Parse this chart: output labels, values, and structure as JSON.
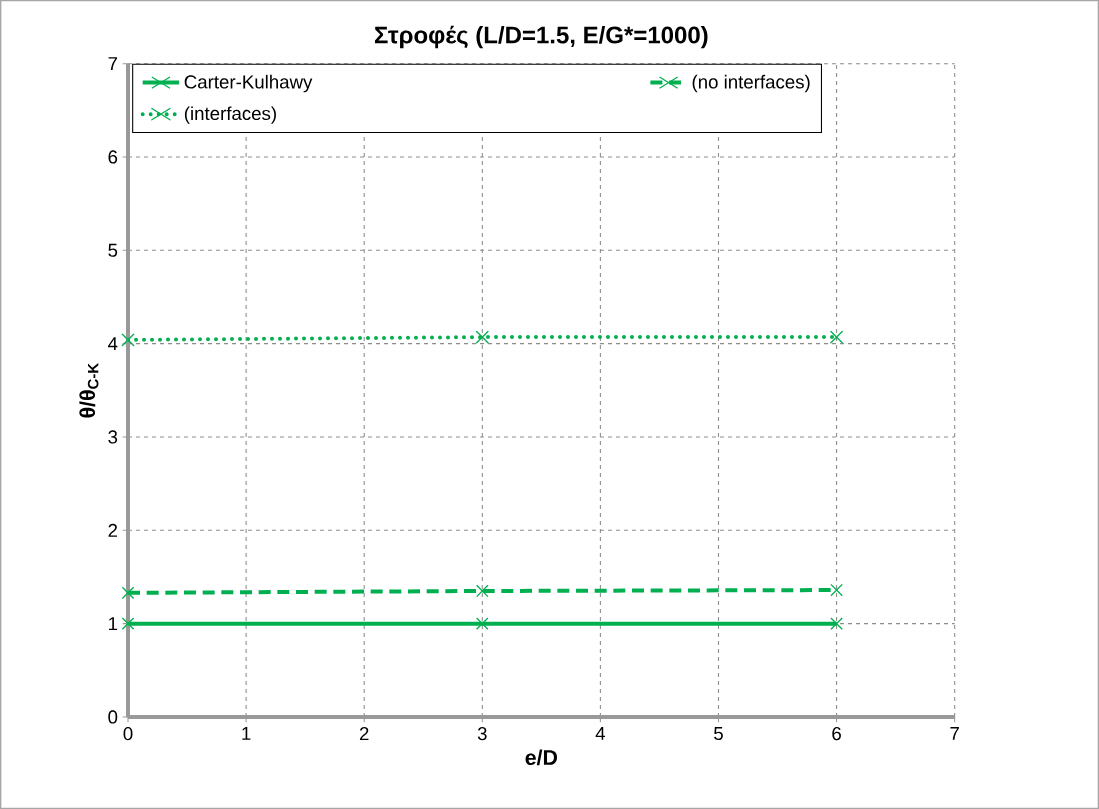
{
  "chart_data": {
    "type": "line",
    "title": "Στροφές (L/D=1.5, E/G*=1000)",
    "xlabel": "e/D",
    "ylabel": "θ/θ$_{C-K}$",
    "x": [
      0,
      3,
      6
    ],
    "series": [
      {
        "name": "Carter-Kulhawy",
        "color": "#00b050",
        "values": [
          1,
          1,
          1
        ],
        "line_style": "solid"
      },
      {
        "name": "(no interfaces)",
        "color": "#00b050",
        "values": [
          1.33,
          1.35,
          1.36
        ],
        "line_style": "dashed"
      },
      {
        "name": "(interfaces)",
        "color": "#00b050",
        "values": [
          4.04,
          4.07,
          4.07
        ],
        "line_style": "dotted"
      }
    ],
    "xlim": [
      0,
      7
    ],
    "ylim": [
      0,
      7
    ],
    "xticks": [
      0,
      1,
      2,
      3,
      4,
      5,
      6,
      7
    ],
    "yticks": [
      0,
      1,
      2,
      3,
      4,
      5,
      6,
      7
    ],
    "grid": true,
    "legend": "top",
    "marker": "cross"
  }
}
